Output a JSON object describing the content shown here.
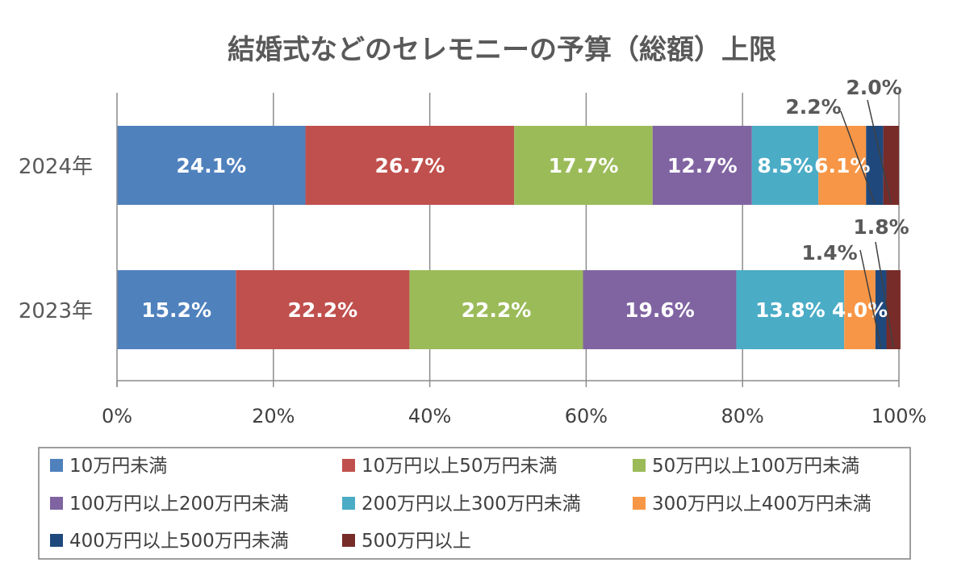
{
  "chart_data": {
    "type": "bar",
    "orientation": "horizontal",
    "stacked": "percent",
    "title": "結婚式などのセレモニーの予算（総額）上限",
    "categories": [
      "2024年",
      "2023年"
    ],
    "x_ticks": [
      "0%",
      "20%",
      "40%",
      "60%",
      "80%",
      "100%"
    ],
    "xlim": [
      0,
      100
    ],
    "grid": true,
    "legend_position": "bottom",
    "series": [
      {
        "name": "10万円未満",
        "color": "#4F81BD",
        "values": [
          24.1,
          15.2
        ],
        "labels": [
          "24.1%",
          "15.2%"
        ]
      },
      {
        "name": "10万円以上50万円未満",
        "color": "#C0504D",
        "values": [
          26.7,
          22.2
        ],
        "labels": [
          "26.7%",
          "22.2%"
        ]
      },
      {
        "name": "50万円以上100万円未満",
        "color": "#9BBB59",
        "values": [
          17.7,
          22.2
        ],
        "labels": [
          "17.7%",
          "22.2%"
        ]
      },
      {
        "name": "100万円以上200万円未満",
        "color": "#8064A2",
        "values": [
          12.7,
          19.6
        ],
        "labels": [
          "12.7%",
          "19.6%"
        ]
      },
      {
        "name": "200万円以上300万円未満",
        "color": "#4BACC6",
        "values": [
          8.5,
          13.8
        ],
        "labels": [
          "8.5%",
          "13.8%"
        ]
      },
      {
        "name": "300万円以上400万円未満",
        "color": "#F79646",
        "values": [
          6.1,
          4.0
        ],
        "labels": [
          "6.1%",
          "4.0%"
        ]
      },
      {
        "name": "400万円以上500万円未満",
        "color": "#1F497D",
        "values": [
          2.2,
          1.4
        ],
        "labels": [
          "2.2%",
          "1.4%"
        ]
      },
      {
        "name": "500万円以上",
        "color": "#772C2A",
        "values": [
          2.0,
          1.8
        ],
        "labels": [
          "2.0%",
          "1.8%"
        ]
      }
    ]
  }
}
